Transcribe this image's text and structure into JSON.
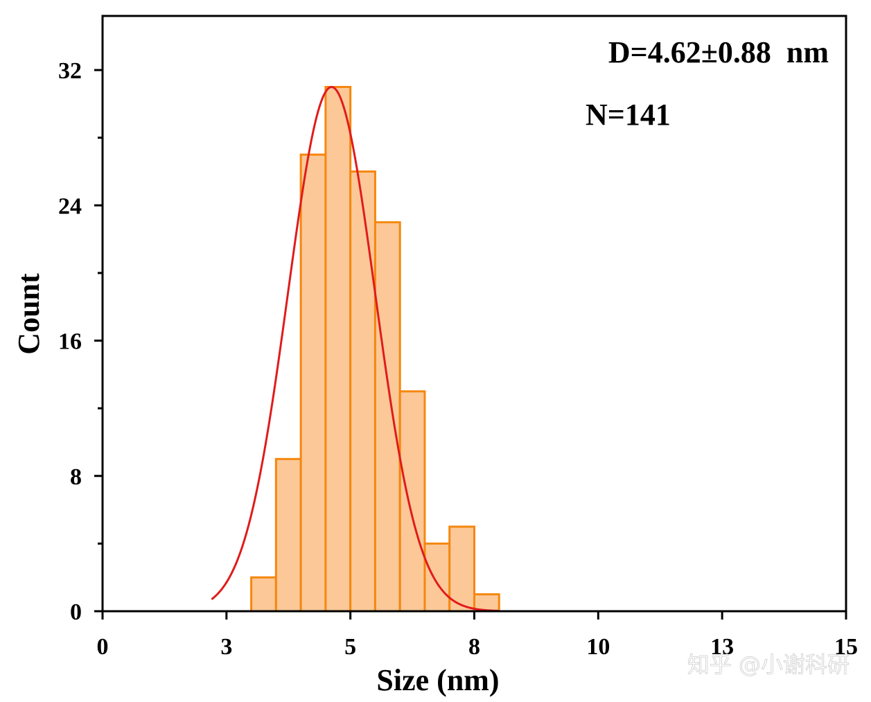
{
  "chart_data": {
    "type": "bar",
    "subtype": "histogram-with-gaussian-fit",
    "bins": [
      {
        "start": 3.0,
        "end": 3.5,
        "count": 2
      },
      {
        "start": 3.5,
        "end": 4.0,
        "count": 9
      },
      {
        "start": 4.0,
        "end": 4.5,
        "count": 27
      },
      {
        "start": 4.5,
        "end": 5.0,
        "count": 31
      },
      {
        "start": 5.0,
        "end": 5.5,
        "count": 26
      },
      {
        "start": 5.5,
        "end": 6.0,
        "count": 23
      },
      {
        "start": 6.0,
        "end": 6.5,
        "count": 13
      },
      {
        "start": 6.5,
        "end": 7.0,
        "count": 4
      },
      {
        "start": 7.0,
        "end": 7.5,
        "count": 5
      },
      {
        "start": 7.5,
        "end": 8.0,
        "count": 1
      }
    ],
    "fit": {
      "mean": 4.62,
      "sigma": 0.88,
      "peak": 31,
      "x_range": [
        2.2,
        8.0
      ]
    },
    "xlabel": "Size (nm)",
    "ylabel": "Count",
    "xlim": [
      0,
      15
    ],
    "ylim": [
      0,
      35.2
    ],
    "xticks": [
      0,
      2.5,
      5,
      7.5,
      10,
      12.5,
      15
    ],
    "xtick_labels": [
      "0",
      "3",
      "5",
      "8",
      "10",
      "13",
      "15"
    ],
    "yticks": [
      0,
      8,
      16,
      24,
      32
    ],
    "ytick_labels": [
      "0",
      "8",
      "16",
      "24",
      "32"
    ],
    "annotations": [
      "D=4.62±0.88  nm",
      "N=141"
    ],
    "grid": false,
    "colors": {
      "bar_fill": "#fcc898",
      "bar_edge": "#f5870f",
      "fit_line": "#e01b1b",
      "axis": "#000000"
    }
  },
  "watermark": "知乎 @小谢科研"
}
